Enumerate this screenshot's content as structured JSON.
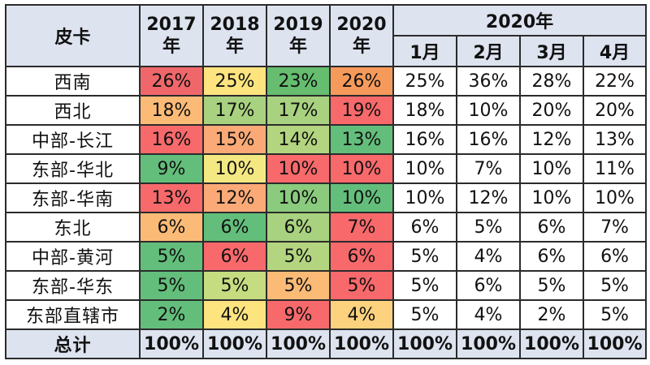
{
  "table": {
    "corner_label": "皮卡",
    "year_headers": [
      {
        "year": "2017",
        "suffix": "年"
      },
      {
        "year": "2018",
        "suffix": "年"
      },
      {
        "year": "2019",
        "suffix": "年"
      },
      {
        "year": "2020",
        "suffix": "年"
      }
    ],
    "month_group_label": "2020年",
    "month_headers": [
      "1月",
      "2月",
      "3月",
      "4月"
    ],
    "rows": [
      {
        "region": "西南",
        "years": [
          "26%",
          "25%",
          "23%",
          "26%"
        ],
        "year_colors": [
          "#f0676b",
          "#fde47f",
          "#66bd6f",
          "#f69a5b"
        ],
        "months": [
          "25%",
          "36%",
          "28%",
          "22%"
        ]
      },
      {
        "region": "西北",
        "years": [
          "18%",
          "17%",
          "17%",
          "19%"
        ],
        "year_colors": [
          "#fbbb77",
          "#a8d27f",
          "#a8d27f",
          "#f8696b"
        ],
        "months": [
          "18%",
          "10%",
          "20%",
          "20%"
        ]
      },
      {
        "region": "中部-长江",
        "years": [
          "16%",
          "15%",
          "14%",
          "13%"
        ],
        "year_colors": [
          "#f8696b",
          "#fbaa77",
          "#b4d57f",
          "#63be7b"
        ],
        "months": [
          "16%",
          "16%",
          "12%",
          "13%"
        ]
      },
      {
        "region": "东部-华北",
        "years": [
          "9%",
          "10%",
          "10%",
          "10%"
        ],
        "year_colors": [
          "#63be7b",
          "#f4e883",
          "#f8696b",
          "#f8696b"
        ],
        "months": [
          "10%",
          "7%",
          "10%",
          "11%"
        ]
      },
      {
        "region": "东部-华南",
        "years": [
          "13%",
          "12%",
          "10%",
          "10%"
        ],
        "year_colors": [
          "#f8696b",
          "#fbaa77",
          "#8acb7e",
          "#63be7b"
        ],
        "months": [
          "10%",
          "12%",
          "10%",
          "10%"
        ]
      },
      {
        "region": "东北",
        "years": [
          "6%",
          "6%",
          "6%",
          "7%"
        ],
        "year_colors": [
          "#fbbb77",
          "#63be7b",
          "#a8d27f",
          "#f8696b"
        ],
        "months": [
          "6%",
          "5%",
          "6%",
          "7%"
        ]
      },
      {
        "region": "中部-黄河",
        "years": [
          "5%",
          "6%",
          "5%",
          "6%"
        ],
        "year_colors": [
          "#63be7b",
          "#f8696b",
          "#b4d57f",
          "#f8696b"
        ],
        "months": [
          "5%",
          "4%",
          "6%",
          "6%"
        ]
      },
      {
        "region": "东部-华东",
        "years": [
          "5%",
          "5%",
          "5%",
          "5%"
        ],
        "year_colors": [
          "#63be7b",
          "#c6dc81",
          "#fbbb77",
          "#f8696b"
        ],
        "months": [
          "5%",
          "6%",
          "5%",
          "5%"
        ]
      },
      {
        "region": "东部直辖市",
        "years": [
          "2%",
          "4%",
          "9%",
          "4%"
        ],
        "year_colors": [
          "#63be7b",
          "#fde47f",
          "#f8696b",
          "#fcd27f"
        ],
        "months": [
          "5%",
          "4%",
          "2%",
          "5%"
        ]
      }
    ],
    "total": {
      "label": "总计",
      "years": [
        "100%",
        "100%",
        "100%",
        "100%"
      ],
      "months": [
        "100%",
        "100%",
        "100%",
        "100%"
      ]
    }
  }
}
